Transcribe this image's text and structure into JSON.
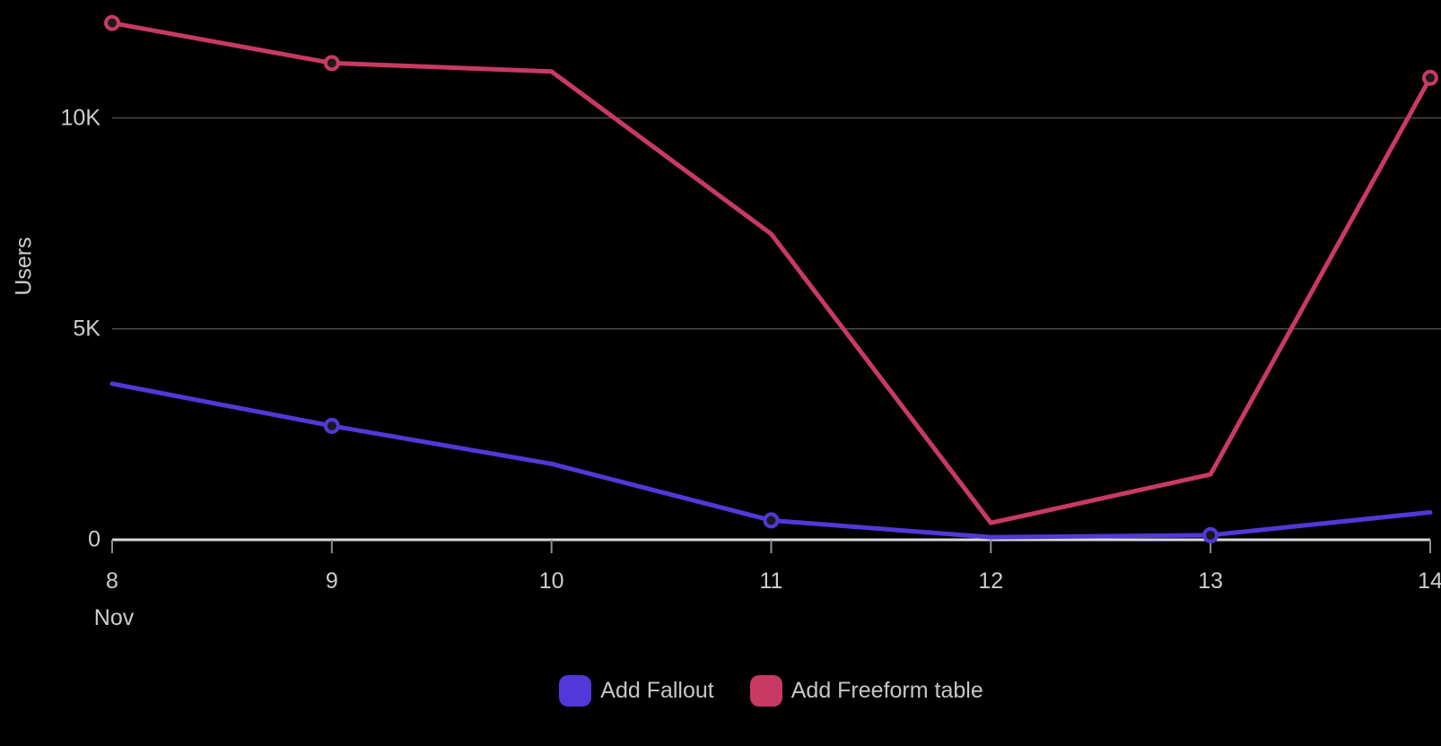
{
  "chart_data": {
    "type": "line",
    "title": "",
    "x_axis": {
      "categories": [
        "8",
        "9",
        "10",
        "11",
        "12",
        "13",
        "14"
      ],
      "month_label": "Nov"
    },
    "y_axis": {
      "label": "Users",
      "ticks": [
        {
          "label": "0",
          "value": 0
        },
        {
          "label": "5K",
          "value": 5000
        },
        {
          "label": "10K",
          "value": 10000
        }
      ],
      "ylim": [
        0,
        13000
      ]
    },
    "series": [
      {
        "name": "Add Fallout",
        "color": "#5238d8",
        "values": [
          3700,
          2700,
          1800,
          460,
          60,
          110,
          650
        ],
        "marker_indices": [
          1,
          3,
          5
        ]
      },
      {
        "name": "Add Freeform table",
        "color": "#c83a64",
        "values": [
          12250,
          11300,
          11100,
          7250,
          400,
          1550,
          10950
        ],
        "marker_indices": [
          0,
          1,
          6
        ]
      }
    ],
    "legend_position": "bottom",
    "grid": "horizontal"
  },
  "colors": {
    "background": "#000000",
    "axis_line": "#d8d8d8",
    "tick_mark": "#8f8f8f",
    "grid_line": "#4a4a4a",
    "tick_text": "#cdcdcd",
    "legend_text": "#c6c6c6",
    "marker_fill": "#1a1a1a"
  }
}
